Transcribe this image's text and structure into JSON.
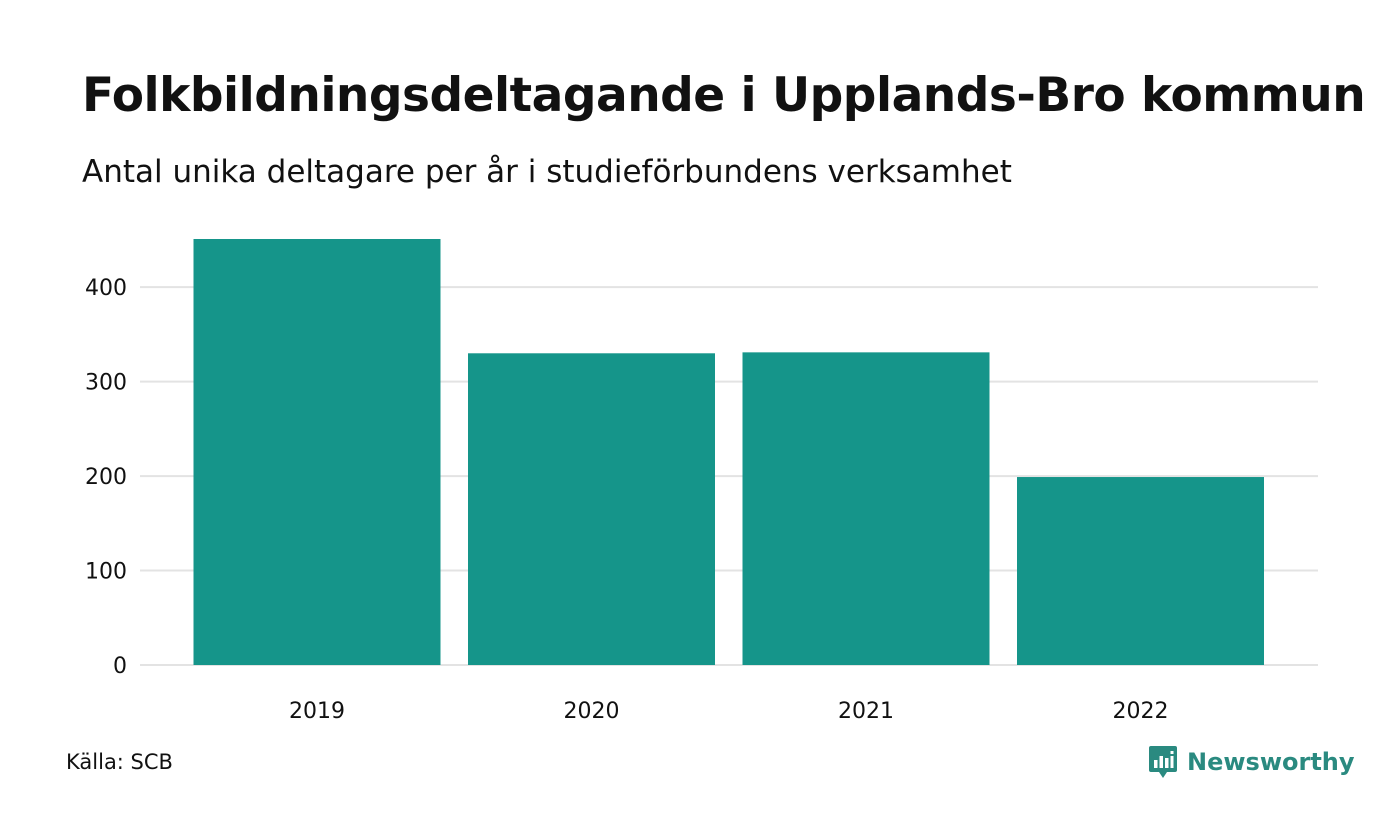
{
  "header": {
    "title": "Folkbildningsdeltagande i Upplands-Bro kommun",
    "subtitle": "Antal unika deltagare per år i studieförbundens verksamhet"
  },
  "footer": {
    "source": "Källa: SCB",
    "brand_name": "Newsworthy",
    "brand_icon": "newsworthy-logo-icon"
  },
  "colors": {
    "bar": "#15958a",
    "grid": "#e3e3e3",
    "brand": "#2a8a80"
  },
  "chart_data": {
    "type": "bar",
    "title": "Folkbildningsdeltagande i Upplands-Bro kommun",
    "subtitle": "Antal unika deltagare per år i studieförbundens verksamhet",
    "xlabel": "",
    "ylabel": "",
    "categories": [
      "2019",
      "2020",
      "2021",
      "2022"
    ],
    "values": [
      451,
      330,
      331,
      199
    ],
    "ylim": [
      0,
      451
    ],
    "yticks": [
      0,
      100,
      200,
      300,
      400
    ],
    "grid": true,
    "legend": "none"
  }
}
